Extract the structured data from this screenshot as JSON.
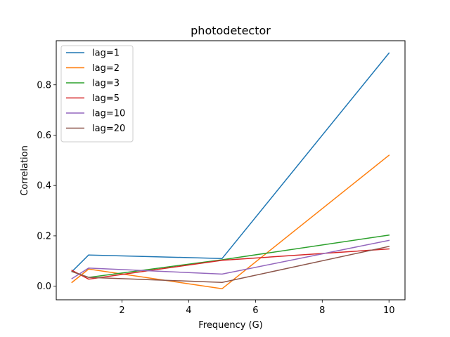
{
  "chart_data": {
    "type": "line",
    "title": "photodetector",
    "xlabel": "Frequency (G)",
    "ylabel": "Correlation",
    "xlim": [
      0.03,
      10.48
    ],
    "ylim": [
      -0.054,
      0.975
    ],
    "xticks": [
      2,
      4,
      6,
      8,
      10
    ],
    "yticks": [
      0.0,
      0.2,
      0.4,
      0.6,
      0.8
    ],
    "xtick_labels": [
      "2",
      "4",
      "6",
      "8",
      "10"
    ],
    "ytick_labels": [
      "0.0",
      "0.2",
      "0.4",
      "0.6",
      "0.8"
    ],
    "grid": false,
    "legend_position": "top-left",
    "x": [
      0.5,
      1,
      5,
      10
    ],
    "series": [
      {
        "name": "lag=1",
        "color": "#1f77b4",
        "values": [
          0.058,
          0.124,
          0.11,
          0.926
        ]
      },
      {
        "name": "lag=2",
        "color": "#ff7f0e",
        "values": [
          0.015,
          0.068,
          -0.01,
          0.52
        ]
      },
      {
        "name": "lag=3",
        "color": "#2ca02c",
        "values": [
          0.058,
          0.035,
          0.105,
          0.203
        ]
      },
      {
        "name": "lag=5",
        "color": "#d62728",
        "values": [
          0.063,
          0.028,
          0.103,
          0.148
        ]
      },
      {
        "name": "lag=10",
        "color": "#9467bd",
        "values": [
          0.03,
          0.072,
          0.048,
          0.182
        ]
      },
      {
        "name": "lag=20",
        "color": "#8c564b",
        "values": [
          0.058,
          0.035,
          0.015,
          0.158
        ]
      }
    ]
  }
}
